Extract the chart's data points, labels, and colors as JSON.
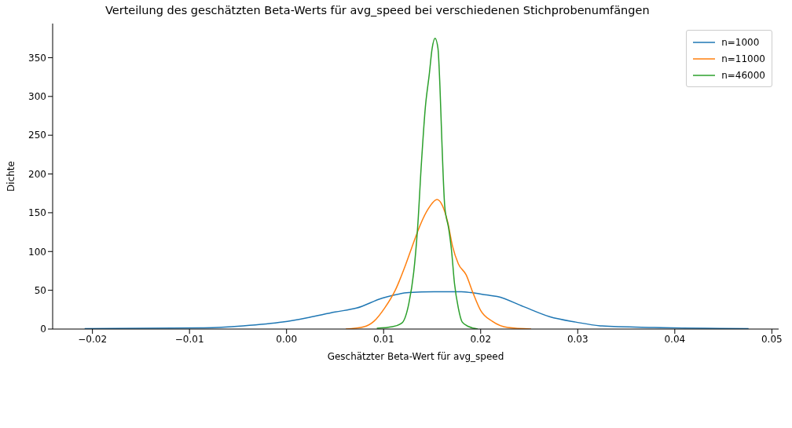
{
  "chart_data": {
    "type": "line",
    "title": "Verteilung des geschätzten Beta-Werts für avg_speed bei verschiedenen Stichprobenumfängen",
    "xlabel": "Geschätzter Beta-Wert für avg_speed",
    "ylabel": "Dichte",
    "xlim": [
      -0.0241,
      0.0507
    ],
    "ylim": [
      0,
      394
    ],
    "xticks": [
      {
        "value": -0.02,
        "label": "−0.02"
      },
      {
        "value": -0.01,
        "label": "−0.01"
      },
      {
        "value": 0,
        "label": "0.00"
      },
      {
        "value": 0.01,
        "label": "0.01"
      },
      {
        "value": 0.02,
        "label": "0.02"
      },
      {
        "value": 0.03,
        "label": "0.03"
      },
      {
        "value": 0.04,
        "label": "0.04"
      },
      {
        "value": 0.05,
        "label": "0.05"
      }
    ],
    "yticks": [
      0,
      50,
      100,
      150,
      200,
      250,
      300,
      350
    ],
    "grid": false,
    "legend": "top right",
    "marker": "none",
    "line_style": "solid",
    "series": [
      {
        "name": "n=1000",
        "color": "#1f77b4",
        "x": [
          -0.0208,
          -0.0085,
          -0.0045,
          -0.0004,
          0.0023,
          0.005,
          0.0072,
          0.0099,
          0.0126,
          0.0152,
          0.018,
          0.019,
          0.0206,
          0.0217,
          0.0244,
          0.0271,
          0.0298,
          0.0325,
          0.0379,
          0.0476
        ],
        "values": [
          0.5,
          1.5,
          4,
          9,
          15,
          22,
          27,
          40,
          47,
          48,
          48,
          47,
          44,
          42,
          29,
          16,
          9,
          4,
          2,
          0.5
        ]
      },
      {
        "name": "n=11000",
        "color": "#ff7f0e",
        "x": [
          0.0061,
          0.008,
          0.009,
          0.0101,
          0.0112,
          0.0123,
          0.0131,
          0.0138,
          0.0146,
          0.0155,
          0.0161,
          0.0166,
          0.0171,
          0.0177,
          0.0185,
          0.0192,
          0.02,
          0.0212,
          0.0228,
          0.0252
        ],
        "values": [
          0,
          3,
          10,
          27,
          50,
          84,
          112,
          135,
          155,
          167,
          158,
          138,
          107,
          84,
          70,
          47,
          24,
          10,
          2,
          0
        ]
      },
      {
        "name": "n=46000",
        "color": "#2ca02c",
        "x": [
          0.0093,
          0.0109,
          0.0119,
          0.0126,
          0.0131,
          0.0135,
          0.0139,
          0.0143,
          0.0147,
          0.015,
          0.0153,
          0.0156,
          0.0158,
          0.016,
          0.0163,
          0.0167,
          0.017,
          0.0173,
          0.0177,
          0.0181,
          0.0188,
          0.0197
        ],
        "values": [
          1,
          3,
          8,
          33,
          73,
          130,
          215,
          286,
          328,
          362,
          375,
          362,
          314,
          243,
          158,
          130,
          101,
          59,
          27,
          9,
          3,
          0
        ]
      }
    ]
  }
}
